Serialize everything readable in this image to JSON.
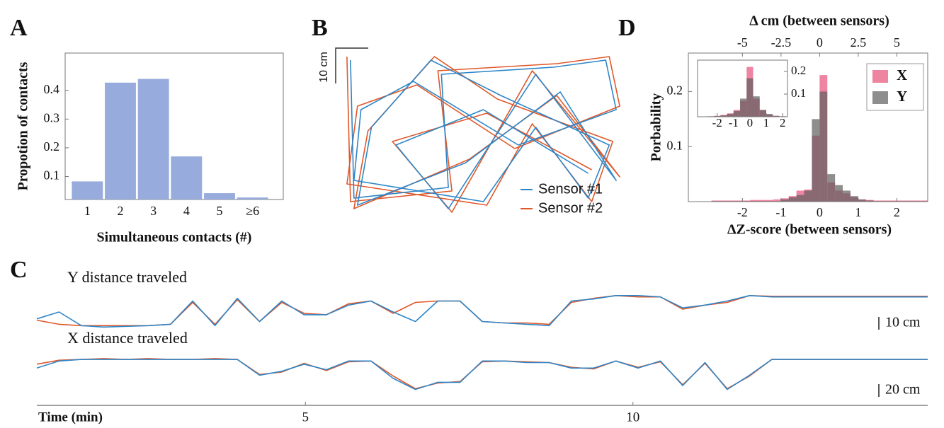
{
  "chart_data": [
    {
      "type": "bar",
      "panel_label": "A",
      "ylabel": "Propotion of contacts",
      "xlabel": "Simultaneous contacts (#)",
      "categories": [
        "1",
        "2",
        "3",
        "4",
        "5",
        "≥6"
      ],
      "values": [
        0.083,
        0.427,
        0.44,
        0.17,
        0.042,
        0.027
      ],
      "color": "#97acdc",
      "ylim": [
        0.02,
        0.53
      ],
      "yticks": [
        0.1,
        0.2,
        0.3,
        0.4
      ]
    },
    {
      "type": "line",
      "panel_label": "B",
      "annotation": "10 cm",
      "legend": "lower right",
      "xlim": [
        0,
        80
      ],
      "ylim": [
        0,
        46
      ],
      "series": [
        {
          "name": "Sensor #1",
          "color": "#2e86c8",
          "x": [
            2,
            3,
            30,
            28,
            60,
            75,
            78,
            50,
            20,
            5,
            3,
            40,
            55,
            70,
            76,
            45,
            25,
            8,
            4,
            35,
            62,
            78,
            55,
            30,
            15,
            40,
            70
          ],
          "values": [
            44,
            5,
            8,
            40,
            42,
            44,
            30,
            20,
            38,
            30,
            10,
            4,
            25,
            5,
            20,
            34,
            44,
            25,
            3,
            15,
            35,
            10,
            40,
            2,
            20,
            30,
            12
          ]
        },
        {
          "name": "Sensor #2",
          "color": "#e0582a",
          "x": [
            1,
            2,
            31,
            27,
            61,
            76,
            79,
            49,
            21,
            4,
            1,
            41,
            54,
            71,
            77,
            44,
            26,
            7,
            3,
            36,
            61,
            79,
            54,
            31,
            14,
            41,
            71
          ],
          "values": [
            45,
            4,
            7,
            41,
            43,
            45,
            31,
            19,
            37,
            31,
            9,
            3,
            26,
            4,
            21,
            33,
            45,
            24,
            2,
            16,
            34,
            11,
            41,
            1,
            21,
            29,
            13
          ]
        }
      ]
    },
    {
      "type": "line",
      "panel_label": "C",
      "title": "Y distance traveled",
      "annotation": "10 cm",
      "xlim": [
        0.9,
        14.5
      ],
      "ylim": [
        0,
        30
      ],
      "x": [
        0.9,
        1.24,
        1.58,
        1.92,
        2.26,
        2.6,
        2.94,
        3.28,
        3.62,
        3.96,
        4.3,
        4.64,
        4.98,
        5.32,
        5.66,
        6.0,
        6.34,
        6.68,
        7.02,
        7.36,
        7.7,
        8.04,
        8.38,
        8.72,
        9.06,
        9.4,
        9.74,
        10.08,
        10.42,
        10.76,
        11.1,
        11.44,
        11.78,
        12.12,
        12.46,
        12.8,
        13.14,
        13.48,
        13.82,
        14.16,
        14.5
      ],
      "series": [
        {
          "color": "#2e86c8",
          "values": [
            10,
            15,
            5,
            4,
            4.5,
            5,
            6,
            23,
            5,
            25,
            8,
            23,
            13,
            13,
            20,
            23,
            15,
            8,
            23,
            23,
            8,
            7,
            6,
            5,
            23,
            24.5,
            27,
            27,
            26,
            18,
            20,
            23,
            27,
            26,
            26,
            26,
            26,
            26,
            26,
            26,
            26
          ]
        },
        {
          "color": "#e0582a",
          "values": [
            9,
            6,
            5,
            5,
            5,
            5,
            6,
            22,
            6,
            24,
            8,
            22,
            14,
            13,
            21,
            23,
            14,
            22,
            23,
            23,
            8,
            7,
            7,
            6,
            22,
            25,
            27,
            26,
            26,
            17,
            20,
            22,
            27,
            26.5,
            26.5,
            26.5,
            26.5,
            26.5,
            26.5,
            26.5,
            26.5
          ]
        }
      ]
    },
    {
      "type": "line",
      "title": "X distance traveled",
      "annotation": "20 cm",
      "xlabel": "Time (min)",
      "xlim": [
        0.9,
        14.5
      ],
      "xticks": [
        5,
        10
      ],
      "ylim": [
        0,
        60
      ],
      "x": [
        0.9,
        1.24,
        1.58,
        1.92,
        2.26,
        2.6,
        2.94,
        3.28,
        3.62,
        3.96,
        4.3,
        4.64,
        4.98,
        5.32,
        5.66,
        6.0,
        6.34,
        6.68,
        7.02,
        7.36,
        7.7,
        8.04,
        8.38,
        8.72,
        9.06,
        9.4,
        9.74,
        10.08,
        10.42,
        10.76,
        11.1,
        11.44,
        11.78,
        12.12,
        12.46,
        12.8,
        13.14,
        13.48,
        13.82,
        14.16,
        14.5
      ],
      "series": [
        {
          "color": "#2e86c8",
          "values": [
            40,
            49,
            51,
            51,
            51,
            51,
            51,
            51,
            51,
            51,
            31,
            36,
            45,
            38,
            49,
            49,
            27,
            13,
            22,
            22,
            49,
            49,
            47,
            47,
            40,
            40,
            49,
            40,
            49,
            18,
            47,
            13,
            31,
            51,
            51,
            51,
            51,
            51,
            51,
            51,
            51
          ]
        },
        {
          "color": "#e0582a",
          "values": [
            45,
            50,
            51,
            52,
            51,
            52,
            51,
            51,
            52,
            51,
            32,
            35,
            46,
            37,
            48,
            49,
            30,
            14,
            21,
            23,
            48,
            49,
            48,
            47,
            41,
            39,
            49,
            41,
            48,
            19,
            46,
            14,
            30,
            51,
            51,
            51,
            51,
            51,
            51,
            51,
            51
          ]
        }
      ]
    },
    {
      "type": "histogram",
      "panel_label": "D",
      "title": "Δ cm (between sensors)",
      "xlabel": "ΔZ-score (between sensors)",
      "ylabel": "Porbability",
      "legend": "upper right",
      "xlim": [
        -3.4,
        2.8
      ],
      "xticks": [
        -2,
        -1,
        0,
        1,
        2
      ],
      "x2lim": [
        -8.5,
        7
      ],
      "x2ticks": [
        -5,
        -2.5,
        0,
        2.5,
        5
      ],
      "ylim": [
        0,
        0.27
      ],
      "yticks": [
        0.1,
        0.2
      ],
      "bins": [
        -2.8,
        -2.6,
        -2.4,
        -2.2,
        -2.0,
        -1.8,
        -1.6,
        -1.4,
        -1.2,
        -1.0,
        -0.8,
        -0.6,
        -0.4,
        -0.2,
        0,
        0.2,
        0.4,
        0.6,
        0.8,
        1.0,
        1.2,
        1.4,
        1.6,
        1.8,
        2.0,
        2.2,
        2.4,
        2.6,
        2.8
      ],
      "series": [
        {
          "name": "X",
          "color": "#e8507a",
          "values": [
            0.002,
            0.002,
            0.002,
            0.002,
            0.002,
            0.003,
            0.003,
            0.003,
            0.004,
            0.006,
            0.01,
            0.02,
            0.022,
            0.12,
            0.23,
            0.035,
            0.02,
            0.015,
            0.008,
            0.004,
            0.003,
            0.002,
            0.002,
            0.002,
            0.002,
            0.002,
            0.002,
            0.002
          ]
        },
        {
          "name": "Y",
          "color": "#5e5e5e",
          "values": [
            0.001,
            0.001,
            0.001,
            0.001,
            0.001,
            0.001,
            0.001,
            0.001,
            0.001,
            0.004,
            0.008,
            0.012,
            0.02,
            0.15,
            0.2,
            0.05,
            0.03,
            0.02,
            0.01,
            0.004,
            0.002,
            0.001,
            0.001,
            0.001,
            0.001,
            0.001,
            0.001,
            0.001
          ]
        }
      ]
    },
    {
      "type": "histogram",
      "y_axis_position": "right",
      "xlim": [
        -3.2,
        2.3
      ],
      "xticks": [
        -2,
        -1,
        0,
        1,
        2
      ],
      "ylim": [
        0,
        0.25
      ],
      "yticks": [
        0.1,
        0.2
      ],
      "bins": [
        -2.6,
        -2.2,
        -1.8,
        -1.4,
        -1.0,
        -0.6,
        -0.2,
        0.2,
        0.6,
        1.0,
        1.4,
        1.8,
        2.2
      ],
      "series": [
        {
          "color": "#e8507a",
          "values": [
            0.002,
            0.004,
            0.008,
            0.015,
            0.03,
            0.07,
            0.22,
            0.08,
            0.03,
            0.01,
            0.004,
            0.002
          ]
        },
        {
          "color": "#5e5e5e",
          "values": [
            0.002,
            0.003,
            0.006,
            0.012,
            0.025,
            0.08,
            0.17,
            0.09,
            0.03,
            0.012,
            0.004,
            0.002
          ]
        }
      ]
    }
  ]
}
